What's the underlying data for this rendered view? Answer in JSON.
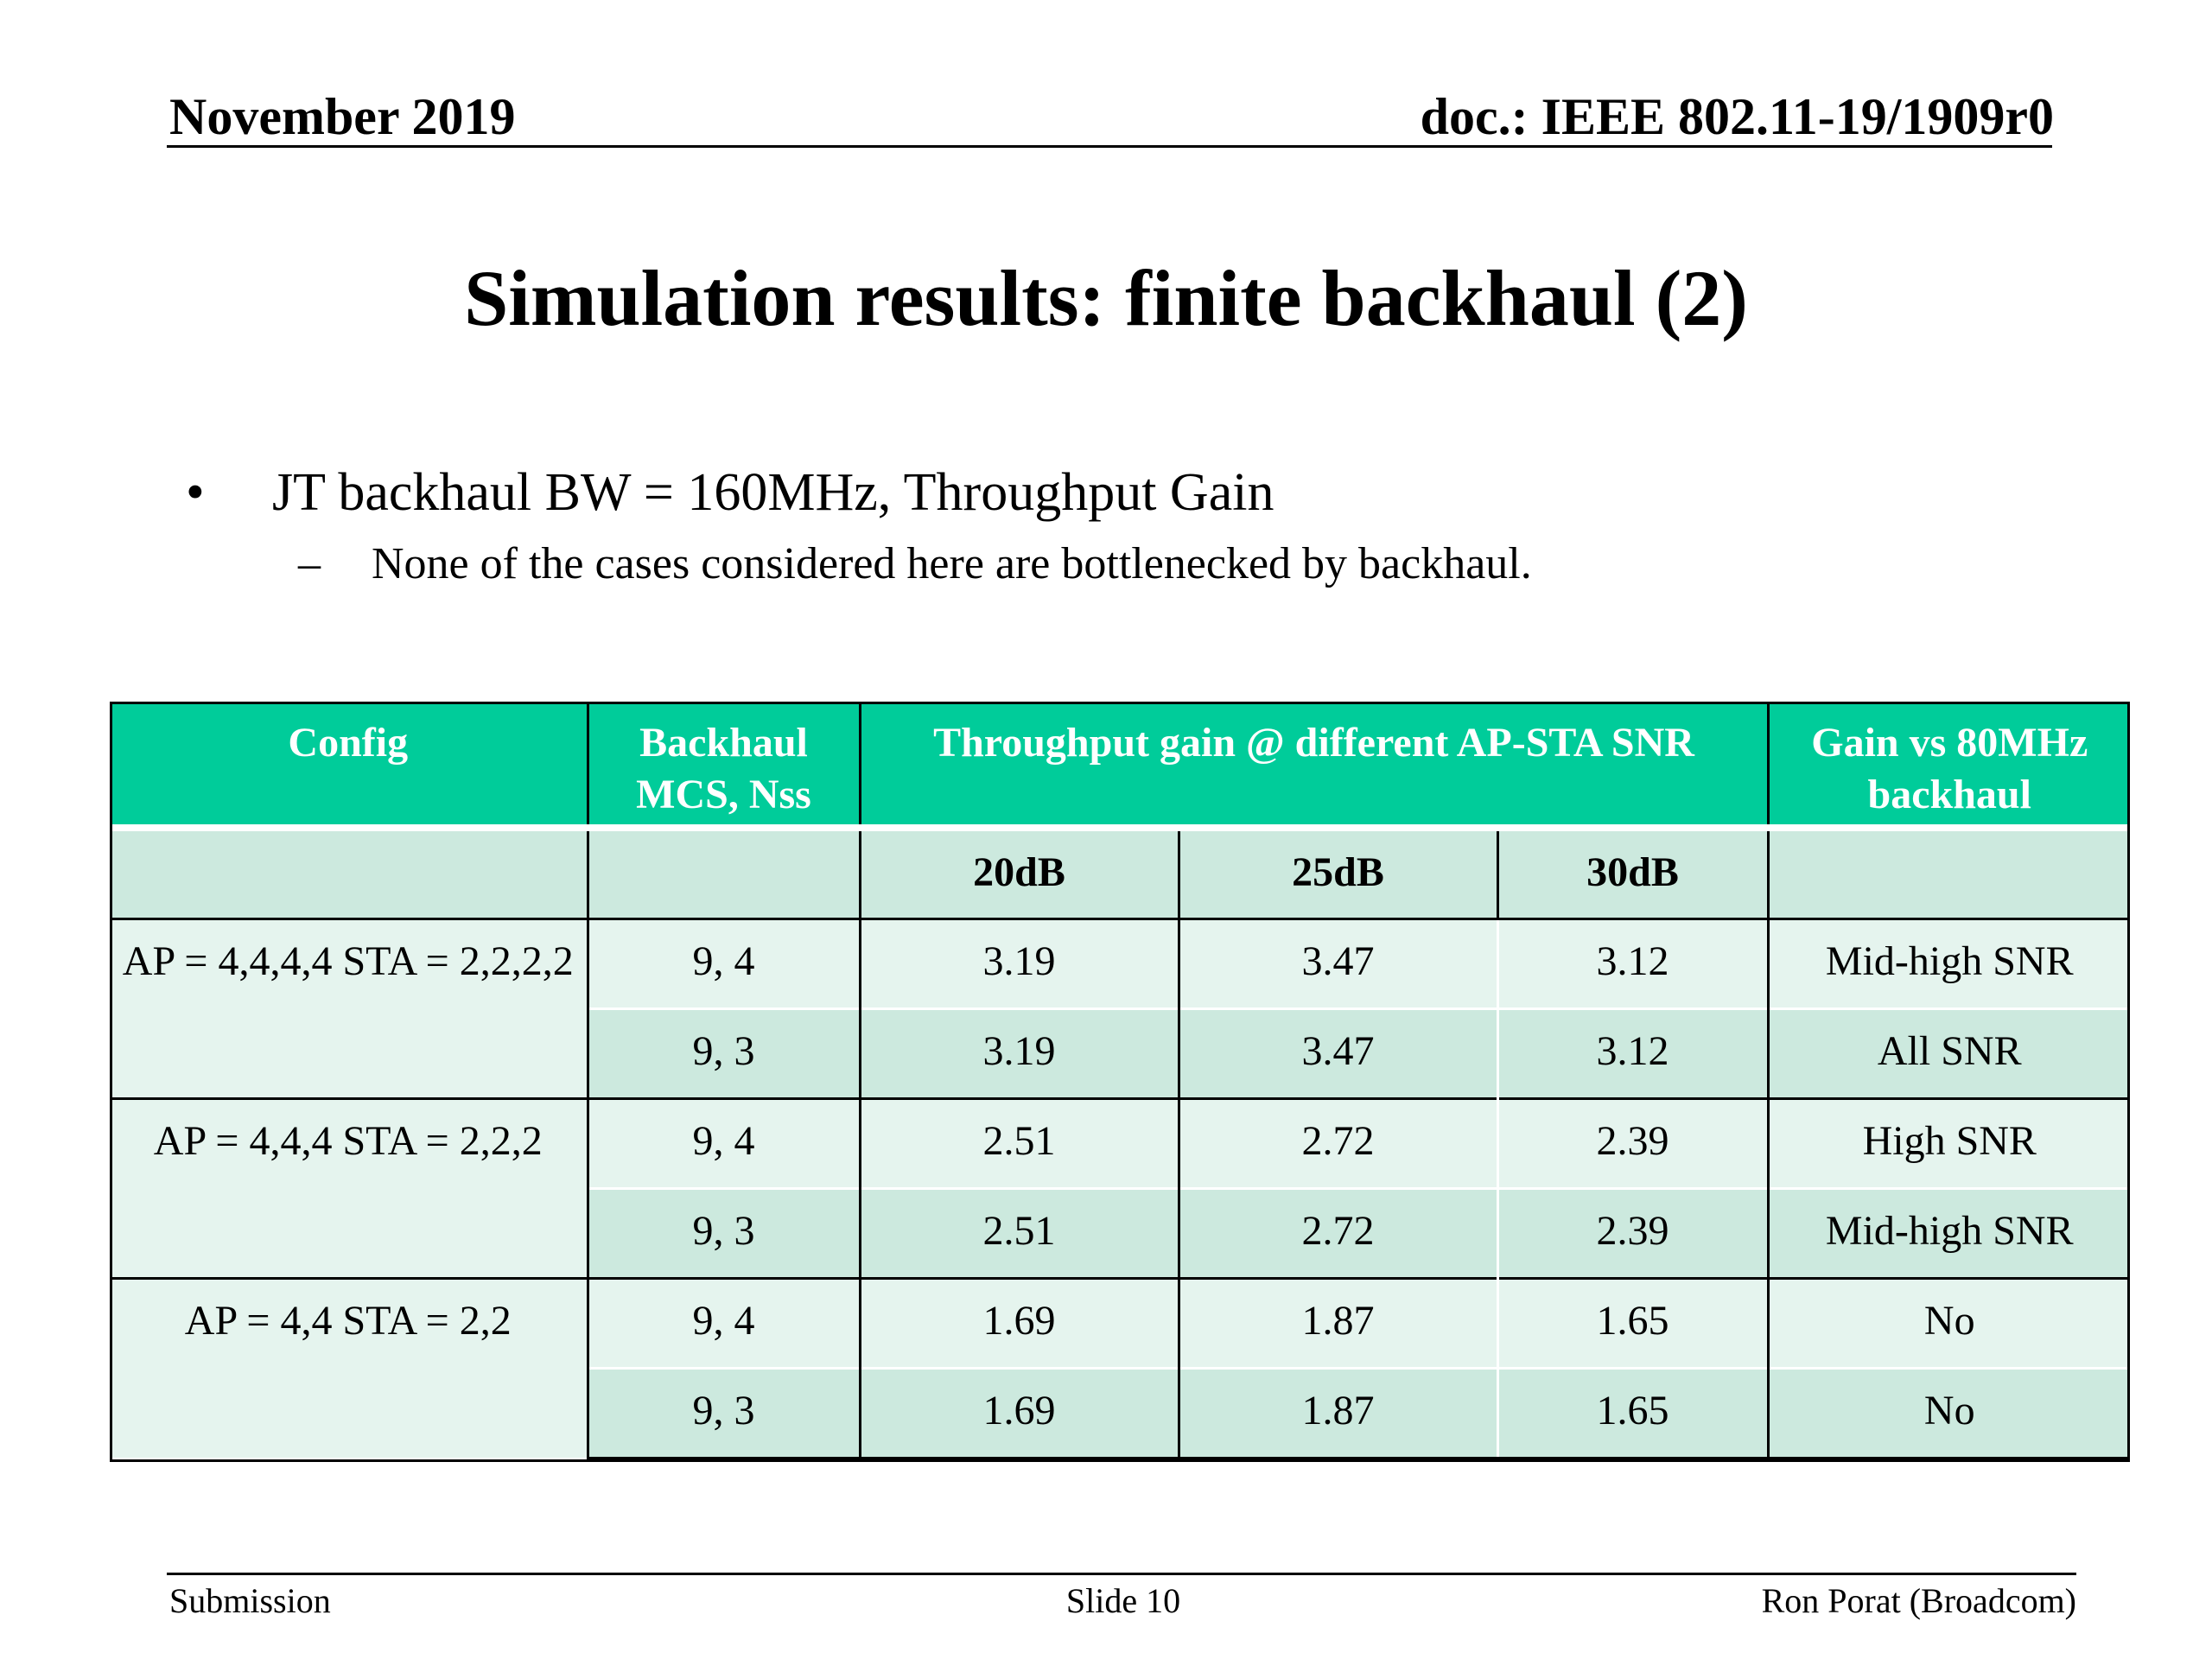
{
  "header": {
    "date": "November 2019",
    "doc": "doc.: IEEE 802.11-19/1909r0"
  },
  "title": "Simulation results: finite backhaul (2)",
  "bullets": [
    {
      "mark": "•",
      "text": "JT backhaul BW = 160MHz, Throughput Gain"
    },
    {
      "mark": "–",
      "text": "None of  the cases considered here are bottlenecked by backhaul."
    }
  ],
  "table": {
    "headers": {
      "config": "Config",
      "backhaul": "Backhaul MCS, Nss",
      "throughput": "Throughput gain @ different AP-STA SNR",
      "gain": "Gain vs 80MHz backhaul"
    },
    "snr_columns": [
      "20dB",
      "25dB",
      "30dB"
    ],
    "groups": [
      {
        "config": "AP = 4,4,4,4  STA = 2,2,2,2",
        "rows": [
          {
            "mcs": "9, 4",
            "values": [
              "3.19",
              "3.47",
              "3.12"
            ],
            "gain": "Mid-high SNR"
          },
          {
            "mcs": "9, 3",
            "values": [
              "3.19",
              "3.47",
              "3.12"
            ],
            "gain": "All SNR"
          }
        ]
      },
      {
        "config": "AP = 4,4,4  STA = 2,2,2",
        "rows": [
          {
            "mcs": "9, 4",
            "values": [
              "2.51",
              "2.72",
              "2.39"
            ],
            "gain": "High SNR"
          },
          {
            "mcs": "9, 3",
            "values": [
              "2.51",
              "2.72",
              "2.39"
            ],
            "gain": "Mid-high SNR"
          }
        ]
      },
      {
        "config": "AP = 4,4  STA = 2,2",
        "rows": [
          {
            "mcs": "9, 4",
            "values": [
              "1.69",
              "1.87",
              "1.65"
            ],
            "gain": "No"
          },
          {
            "mcs": "9, 3",
            "values": [
              "1.69",
              "1.87",
              "1.65"
            ],
            "gain": "No"
          }
        ]
      }
    ]
  },
  "footer": {
    "left": "Submission",
    "center": "Slide 10",
    "right": "Ron Porat (Broadcom)"
  }
}
